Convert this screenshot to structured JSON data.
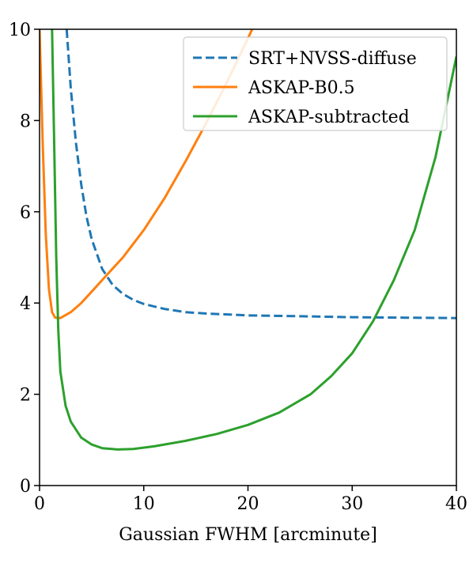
{
  "chart_data": {
    "type": "line",
    "title": "",
    "xlabel": "Gaussian FWHM [arcminute]",
    "ylabel": "",
    "xlim": [
      0,
      40
    ],
    "ylim": [
      0,
      10
    ],
    "xticks": [
      0,
      10,
      20,
      30,
      40
    ],
    "yticks": [
      0,
      2,
      4,
      6,
      8,
      10
    ],
    "xtick_labels": [
      "0",
      "10",
      "20",
      "30",
      "40"
    ],
    "ytick_labels": [
      "0",
      "2",
      "4",
      "6",
      "8",
      "10"
    ],
    "grid": false,
    "legend_position": "top-right",
    "series": [
      {
        "name": "SRT+NVSS-diffuse",
        "color": "#1f77b4",
        "style": "dashed",
        "x": [
          2.6,
          3.0,
          3.5,
          4.0,
          4.5,
          5.0,
          6.0,
          7.0,
          8.0,
          9.0,
          10.0,
          12.0,
          14.0,
          16.0,
          18.0,
          20.0,
          25.0,
          30.0,
          35.0,
          40.0
        ],
        "y": [
          10.0,
          8.7,
          7.5,
          6.6,
          5.9,
          5.4,
          4.75,
          4.4,
          4.2,
          4.07,
          3.98,
          3.87,
          3.8,
          3.77,
          3.75,
          3.73,
          3.71,
          3.69,
          3.68,
          3.67
        ]
      },
      {
        "name": "ASKAP-B0.5",
        "color": "#ff7f0e",
        "style": "solid",
        "x": [
          0.0,
          0.3,
          0.6,
          0.9,
          1.2,
          1.5,
          2.0,
          3.0,
          4.0,
          5.0,
          6.0,
          7.0,
          8.0,
          9.0,
          10.0,
          12.0,
          14.0,
          16.0,
          18.0,
          20.0,
          21.0
        ],
        "y": [
          10.0,
          7.5,
          5.5,
          4.3,
          3.8,
          3.68,
          3.67,
          3.8,
          4.0,
          4.25,
          4.5,
          4.75,
          5.0,
          5.3,
          5.6,
          6.3,
          7.1,
          7.95,
          8.85,
          9.8,
          10.3
        ]
      },
      {
        "name": "ASKAP-subtracted",
        "color": "#2ca02c",
        "style": "solid",
        "x": [
          1.2,
          1.4,
          1.6,
          1.8,
          2.0,
          2.5,
          3.0,
          4.0,
          5.0,
          6.0,
          7.5,
          9.0,
          11.0,
          14.0,
          17.0,
          20.0,
          23.0,
          26.0,
          28.0,
          30.0,
          32.0,
          34.0,
          36.0,
          38.0,
          40.0
        ],
        "y": [
          10.0,
          7.6,
          5.0,
          3.4,
          2.5,
          1.75,
          1.4,
          1.05,
          0.9,
          0.82,
          0.79,
          0.8,
          0.86,
          0.98,
          1.13,
          1.33,
          1.6,
          2.0,
          2.4,
          2.9,
          3.6,
          4.5,
          5.6,
          7.2,
          9.4
        ]
      }
    ]
  }
}
